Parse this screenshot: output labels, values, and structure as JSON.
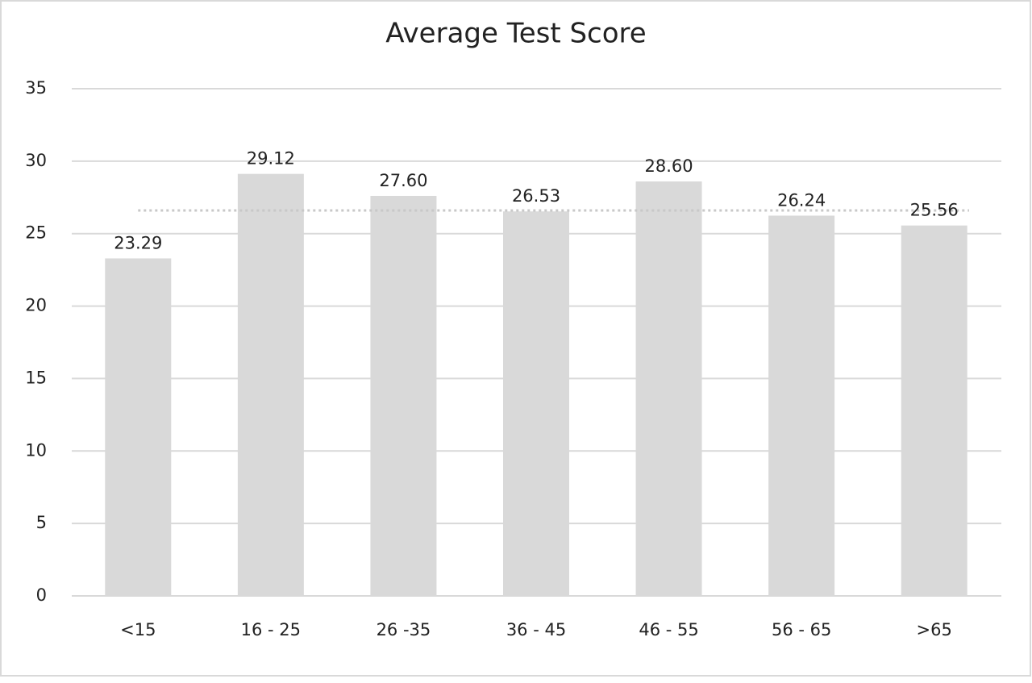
{
  "chart_data": {
    "type": "bar",
    "title": "Average Test Score",
    "categories": [
      "<15",
      "16 - 25",
      "26 -35",
      "36 - 45",
      "46 - 55",
      "56 - 65",
      ">65"
    ],
    "values": [
      23.29,
      29.12,
      27.6,
      26.53,
      28.6,
      26.24,
      25.56
    ],
    "value_labels": [
      "23.29",
      "29.12",
      "27.60",
      "26.53",
      "28.60",
      "26.24",
      "25.56"
    ],
    "color": "#d9d9d9",
    "ylim": [
      0,
      35
    ],
    "yticks": [
      0,
      5,
      10,
      15,
      20,
      25,
      30,
      35
    ],
    "grid": true,
    "reference_line": 26.6
  }
}
